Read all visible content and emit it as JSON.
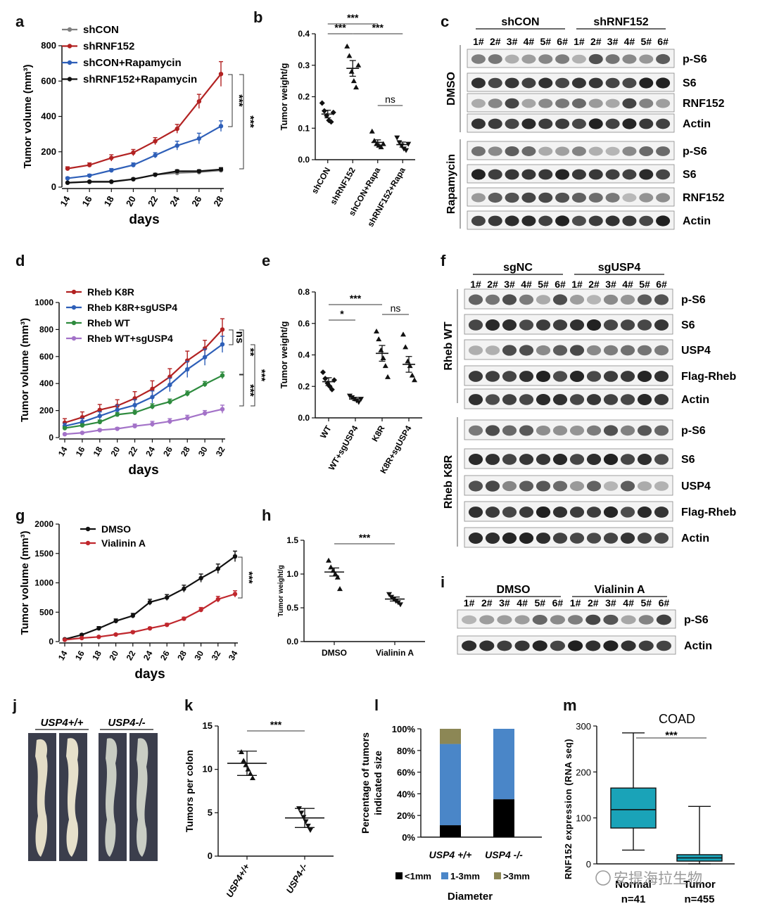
{
  "panel_letters": [
    "a",
    "b",
    "c",
    "d",
    "e",
    "f",
    "g",
    "h",
    "i",
    "j",
    "k",
    "l",
    "m"
  ],
  "chart_data": [
    {
      "id": "a",
      "type": "line",
      "xlabel": "days",
      "ylabel": "Tumor volume (mm³)",
      "x": [
        14,
        16,
        18,
        20,
        22,
        24,
        26,
        28
      ],
      "ylim": [
        0,
        800
      ],
      "yticks": [
        0,
        200,
        400,
        600,
        800
      ],
      "series": [
        {
          "name": "shCON",
          "color": "#808080",
          "values": [
            25,
            32,
            32,
            45,
            70,
            80,
            85,
            95
          ],
          "err": [
            4,
            4,
            4,
            6,
            8,
            8,
            8,
            10
          ]
        },
        {
          "name": "shRNF152",
          "color": "#b22222",
          "values": [
            105,
            125,
            165,
            195,
            260,
            330,
            485,
            640
          ],
          "err": [
            10,
            12,
            18,
            18,
            20,
            25,
            40,
            70
          ]
        },
        {
          "name": "shCON+Rapamycin",
          "color": "#2e5fb8",
          "values": [
            50,
            65,
            95,
            125,
            180,
            235,
            275,
            345
          ],
          "err": [
            6,
            8,
            10,
            12,
            15,
            25,
            30,
            30
          ]
        },
        {
          "name": "shRNF152+Rapamycin",
          "color": "#111111",
          "values": [
            25,
            30,
            30,
            45,
            70,
            90,
            90,
            100
          ],
          "err": [
            4,
            4,
            4,
            6,
            8,
            8,
            8,
            10
          ]
        }
      ],
      "annotations": [
        "***",
        "***"
      ]
    },
    {
      "id": "b",
      "type": "scatter",
      "ylabel": "Tumor weight/g",
      "ylim": [
        0,
        0.4
      ],
      "yticks": [
        0.0,
        0.1,
        0.2,
        0.3,
        0.4
      ],
      "categories": [
        "shCON",
        "shRNF152",
        "shCON+Rapa",
        "shRNF152+Rapa"
      ],
      "means": [
        0.145,
        0.29,
        0.055,
        0.048
      ],
      "sem": [
        0.012,
        0.025,
        0.008,
        0.008
      ],
      "points": [
        [
          0.18,
          0.155,
          0.14,
          0.125,
          0.12,
          0.15
        ],
        [
          0.36,
          0.33,
          0.28,
          0.25,
          0.23,
          0.3
        ],
        [
          0.09,
          0.06,
          0.05,
          0.045,
          0.04,
          0.05
        ],
        [
          0.07,
          0.055,
          0.045,
          0.035,
          0.03,
          0.05
        ]
      ],
      "annotations": [
        "***",
        "***",
        "***",
        "ns"
      ]
    },
    {
      "id": "d",
      "type": "line",
      "xlabel": "days",
      "ylabel": "Tumor volume (mm³)",
      "x": [
        14,
        16,
        18,
        20,
        22,
        24,
        26,
        28,
        30,
        32
      ],
      "ylim": [
        0,
        1000
      ],
      "yticks": [
        0,
        200,
        400,
        600,
        800,
        1000
      ],
      "series": [
        {
          "name": "Rheb K8R",
          "color": "#b22222",
          "values": [
            110,
            150,
            205,
            235,
            290,
            360,
            450,
            570,
            660,
            800
          ],
          "err": [
            30,
            40,
            40,
            45,
            50,
            60,
            60,
            70,
            60,
            80
          ]
        },
        {
          "name": "Rheb K8R+sgUSP4",
          "color": "#2e5fb8",
          "values": [
            85,
            115,
            160,
            205,
            240,
            300,
            390,
            505,
            595,
            690
          ],
          "err": [
            20,
            25,
            30,
            35,
            40,
            45,
            50,
            60,
            60,
            60
          ]
        },
        {
          "name": "Rheb WT",
          "color": "#2e8b3e",
          "values": [
            70,
            90,
            115,
            170,
            185,
            230,
            265,
            325,
            395,
            460
          ],
          "err": [
            10,
            12,
            15,
            15,
            18,
            20,
            20,
            20,
            20,
            25
          ]
        },
        {
          "name": "Rheb WT+sgUSP4",
          "color": "#a372c8",
          "values": [
            25,
            35,
            55,
            65,
            85,
            100,
            120,
            145,
            180,
            210
          ],
          "err": [
            5,
            5,
            8,
            10,
            15,
            20,
            20,
            20,
            20,
            30
          ]
        }
      ],
      "annotations": [
        "ns",
        "**",
        "***",
        "***"
      ]
    },
    {
      "id": "e",
      "type": "scatter",
      "ylabel": "Tumor weight/g",
      "ylim": [
        0,
        0.8
      ],
      "yticks": [
        0.0,
        0.2,
        0.4,
        0.6,
        0.8
      ],
      "categories": [
        "WT",
        "WT+sgUSP4",
        "K8R",
        "K8R+sgUSP4"
      ],
      "means": [
        0.23,
        0.12,
        0.41,
        0.34
      ],
      "sem": [
        0.025,
        0.01,
        0.05,
        0.05
      ],
      "points": [
        [
          0.29,
          0.25,
          0.22,
          0.2,
          0.18,
          0.24
        ],
        [
          0.14,
          0.13,
          0.12,
          0.11,
          0.1,
          0.12
        ],
        [
          0.55,
          0.5,
          0.43,
          0.38,
          0.33,
          0.26
        ],
        [
          0.53,
          0.45,
          0.36,
          0.33,
          0.27,
          0.24
        ]
      ],
      "annotations": [
        "***",
        "*",
        "ns"
      ]
    },
    {
      "id": "g",
      "type": "line",
      "xlabel": "days",
      "ylabel": "Tumor volume (mm³)",
      "x": [
        14,
        16,
        18,
        20,
        22,
        24,
        26,
        28,
        30,
        32,
        34
      ],
      "ylim": [
        0,
        2000
      ],
      "yticks": [
        0,
        500,
        1000,
        1500,
        2000
      ],
      "series": [
        {
          "name": "DMSO",
          "color": "#111111",
          "values": [
            40,
            115,
            225,
            350,
            440,
            670,
            750,
            900,
            1080,
            1240,
            1450
          ],
          "err": [
            8,
            15,
            30,
            35,
            40,
            50,
            50,
            60,
            70,
            80,
            90
          ]
        },
        {
          "name": "Vialinin A",
          "color": "#c0272d",
          "values": [
            30,
            60,
            80,
            120,
            160,
            225,
            285,
            390,
            540,
            720,
            810
          ],
          "err": [
            5,
            8,
            10,
            15,
            20,
            20,
            25,
            25,
            40,
            50,
            55
          ]
        }
      ],
      "annotations": [
        "***"
      ]
    },
    {
      "id": "h",
      "type": "scatter",
      "ylabel": "Tumor weight/g",
      "ylim": [
        0,
        1.5
      ],
      "yticks": [
        0.0,
        0.5,
        1.0,
        1.5
      ],
      "categories": [
        "DMSO",
        "Vialinin A"
      ],
      "means": [
        1.03,
        0.63
      ],
      "sem": [
        0.06,
        0.03
      ],
      "points": [
        [
          1.2,
          1.1,
          1.05,
          1.0,
          0.95,
          0.78
        ],
        [
          0.7,
          0.66,
          0.63,
          0.6,
          0.58,
          0.55
        ]
      ],
      "annotations": [
        "***"
      ]
    },
    {
      "id": "k",
      "type": "scatter",
      "ylabel": "Tumors per colon",
      "ylim": [
        0,
        15
      ],
      "yticks": [
        0,
        5,
        10,
        15
      ],
      "categories": [
        "USP4+/+",
        "USP4-/-"
      ],
      "means": [
        10.7,
        4.4
      ],
      "sem": [
        1.4,
        1.1
      ],
      "points": [
        [
          12,
          11,
          10.5,
          10,
          9.5,
          9
        ],
        [
          5.5,
          5,
          4.5,
          4,
          3.5,
          3
        ]
      ],
      "annotations": [
        "***"
      ]
    },
    {
      "id": "l",
      "type": "bar",
      "ylabel": "Percentage of tumors indicated size",
      "xlabel": "Diameter",
      "ylim": [
        0,
        100
      ],
      "yticks": [
        "0%",
        "20%",
        "40%",
        "60%",
        "80%",
        "100%"
      ],
      "categories": [
        "USP4 +/+",
        "USP4 -/-"
      ],
      "series": [
        {
          "name": "<1mm",
          "color": "#000000",
          "values": [
            11,
            35
          ]
        },
        {
          "name": "1-3mm",
          "color": "#4a86c8",
          "values": [
            75,
            65
          ]
        },
        {
          "name": ">3mm",
          "color": "#8c8755",
          "values": [
            14,
            0
          ]
        }
      ]
    },
    {
      "id": "m",
      "type": "boxplot",
      "title": "COAD",
      "ylabel": "RNF152 expression (RNA seq)",
      "ylim": [
        0,
        300
      ],
      "yticks": [
        0,
        100,
        200,
        300
      ],
      "categories": [
        "Normal",
        "Tumor"
      ],
      "counts": [
        "n=41",
        "n=455"
      ],
      "boxes": [
        {
          "min": 30,
          "q1": 78,
          "median": 118,
          "q3": 165,
          "max": 285
        },
        {
          "min": 0,
          "q1": 6,
          "median": 13,
          "q3": 20,
          "max": 125
        }
      ],
      "color": "#1aa3b8",
      "annotations": [
        "***"
      ]
    }
  ],
  "blots": {
    "c": {
      "groups": [
        "shCON",
        "shRNF152"
      ],
      "lanes": [
        "1#",
        "2#",
        "3#",
        "4#",
        "5#",
        "6#",
        "1#",
        "2#",
        "3#",
        "4#",
        "5#",
        "6#"
      ],
      "conditions": [
        "DMSO",
        "Rapamycin"
      ],
      "rows": [
        "p-S6",
        "S6",
        "RNF152",
        "Actin",
        "p-S6",
        "S6",
        "RNF152",
        "Actin"
      ]
    },
    "f": {
      "groups": [
        "sgNC",
        "sgUSP4"
      ],
      "lanes": [
        "1#",
        "2#",
        "3#",
        "4#",
        "5#",
        "6#",
        "1#",
        "2#",
        "3#",
        "4#",
        "5#",
        "6#"
      ],
      "conditions": [
        "Rheb WT",
        "Rheb K8R"
      ],
      "rows": [
        "p-S6",
        "S6",
        "USP4",
        "Flag-Rheb",
        "Actin",
        "p-S6",
        "S6",
        "USP4",
        "Flag-Rheb",
        "Actin"
      ]
    },
    "i": {
      "groups": [
        "DMSO",
        "Vialinin A"
      ],
      "lanes": [
        "1#",
        "2#",
        "3#",
        "4#",
        "5#",
        "6#",
        "1#",
        "2#",
        "3#",
        "4#",
        "5#",
        "6#"
      ],
      "rows": [
        "p-S6",
        "Actin"
      ]
    }
  },
  "photo_j": {
    "labels": [
      "USP4+/+",
      "USP4-/-"
    ]
  },
  "watermark": "安提海拉生物"
}
